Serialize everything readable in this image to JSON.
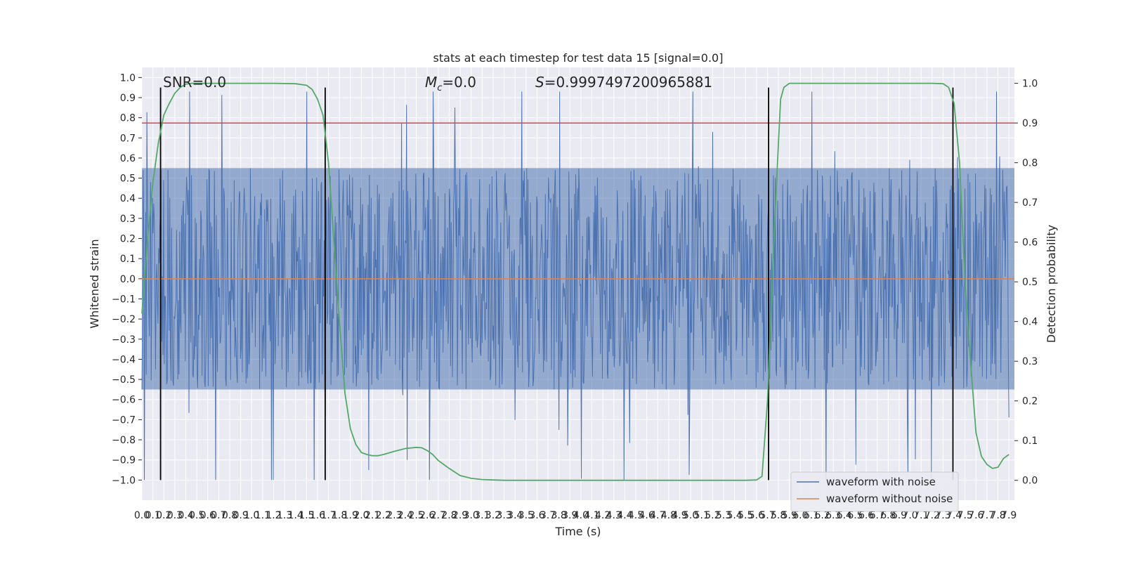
{
  "chart_data": {
    "type": "line",
    "title": "stats at each timestep for test data 15 [signal=0.0]",
    "xlabel": "Time (s)",
    "ylabel": "Whitened strain",
    "y2label": "Detection probability",
    "xlim": [
      0.0,
      7.95
    ],
    "ylim": [
      -1.1,
      1.05
    ],
    "y2lim": [
      -0.05,
      1.04
    ],
    "x_ticks": [
      0.0,
      0.1,
      0.2,
      0.3,
      0.4,
      0.5,
      0.6,
      0.7,
      0.8,
      0.9,
      1.0,
      1.1,
      1.2,
      1.3,
      1.4,
      1.5,
      1.6,
      1.7,
      1.8,
      1.9,
      2.0,
      2.1,
      2.2,
      2.3,
      2.4,
      2.5,
      2.6,
      2.7,
      2.8,
      2.9,
      3.0,
      3.1,
      3.2,
      3.3,
      3.4,
      3.5,
      3.6,
      3.7,
      3.8,
      3.9,
      4.0,
      4.1,
      4.2,
      4.3,
      4.4,
      4.5,
      4.6,
      4.7,
      4.8,
      4.9,
      5.0,
      5.1,
      5.2,
      5.3,
      5.4,
      5.5,
      5.6,
      5.7,
      5.8,
      5.9,
      6.0,
      6.1,
      6.2,
      6.3,
      6.4,
      6.5,
      6.6,
      6.7,
      6.8,
      6.9,
      7.0,
      7.1,
      7.2,
      7.3,
      7.4,
      7.5,
      7.6,
      7.7,
      7.8,
      7.9
    ],
    "y_ticks": [
      1.0,
      0.9,
      0.8,
      0.7,
      0.6,
      0.5,
      0.4,
      0.3,
      0.2,
      0.1,
      0.0,
      -0.1,
      -0.2,
      -0.3,
      -0.4,
      -0.5,
      -0.6,
      -0.7,
      -0.8,
      -0.9,
      -1.0
    ],
    "y2_ticks": [
      0.0,
      0.1,
      0.2,
      0.3,
      0.4,
      0.5,
      0.6,
      0.7,
      0.8,
      0.9,
      1.0
    ],
    "annotations": {
      "snr": "SNR=0.0",
      "mc_symbol": "M",
      "mc_sub": "c",
      "mc_value": "=0.0",
      "s_symbol": "S",
      "s_value": "=0.9997497200965881"
    },
    "legend": {
      "placement": "lower-right",
      "entries": [
        {
          "label": "waveform with noise",
          "color": "#4c72b0"
        },
        {
          "label": "waveform without noise",
          "color": "#dd8452"
        }
      ]
    },
    "threshold": {
      "axis": "right",
      "value": 0.9,
      "color": "#c44e52"
    },
    "vertical_markers": [
      0.17,
      1.67,
      5.71,
      7.39
    ],
    "noise_series": {
      "name": "waveform with noise",
      "color": "#4c72b0",
      "envelope_low": -0.55,
      "envelope_high": 0.55,
      "peak_max": 0.93,
      "trough_min": -1.0,
      "sample_count": 1400
    },
    "clean_series": {
      "name": "waveform without noise",
      "color": "#dd8452",
      "value": 0.0
    },
    "probability_series": {
      "name": "detection probability",
      "color": "#55a868",
      "x": [
        0.0,
        0.05,
        0.1,
        0.15,
        0.2,
        0.25,
        0.3,
        0.35,
        0.4,
        0.45,
        0.5,
        0.6,
        0.8,
        1.0,
        1.2,
        1.4,
        1.5,
        1.55,
        1.6,
        1.65,
        1.7,
        1.75,
        1.8,
        1.85,
        1.9,
        1.95,
        2.0,
        2.05,
        2.1,
        2.15,
        2.2,
        2.3,
        2.4,
        2.5,
        2.55,
        2.6,
        2.65,
        2.7,
        2.8,
        2.9,
        3.0,
        3.1,
        3.2,
        3.3,
        3.5,
        4.0,
        4.5,
        5.0,
        5.5,
        5.6,
        5.65,
        5.7,
        5.75,
        5.8,
        5.82,
        5.85,
        5.9,
        6.0,
        6.5,
        7.0,
        7.2,
        7.3,
        7.35,
        7.4,
        7.45,
        7.5,
        7.55,
        7.6,
        7.65,
        7.7,
        7.75,
        7.8,
        7.85,
        7.9
      ],
      "values": [
        0.42,
        0.6,
        0.75,
        0.85,
        0.92,
        0.95,
        0.975,
        0.99,
        0.998,
        1.0,
        1.0,
        1.0,
        1.0,
        1.0,
        1.0,
        0.999,
        0.995,
        0.985,
        0.96,
        0.92,
        0.8,
        0.6,
        0.4,
        0.22,
        0.13,
        0.09,
        0.07,
        0.065,
        0.062,
        0.062,
        0.065,
        0.073,
        0.08,
        0.083,
        0.082,
        0.075,
        0.065,
        0.05,
        0.03,
        0.012,
        0.005,
        0.002,
        0.001,
        0.0,
        0.0,
        0.0,
        0.0,
        0.0,
        0.0,
        0.001,
        0.01,
        0.2,
        0.55,
        0.85,
        0.96,
        0.99,
        1.0,
        1.0,
        1.0,
        1.0,
        1.0,
        0.999,
        0.99,
        0.95,
        0.8,
        0.5,
        0.3,
        0.12,
        0.06,
        0.04,
        0.03,
        0.033,
        0.055,
        0.065
      ]
    }
  }
}
